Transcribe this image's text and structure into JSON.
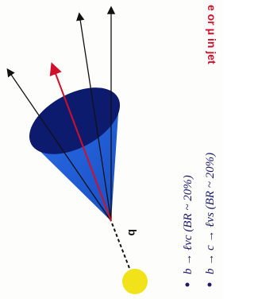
{
  "annotations": {
    "lepton_label": "e or μ in jet",
    "quark_label": "b"
  },
  "bullets": [
    "b → ℓνc (BR ~ 20%)",
    "b → c → ℓνs (BR ~ 20%)"
  ]
}
